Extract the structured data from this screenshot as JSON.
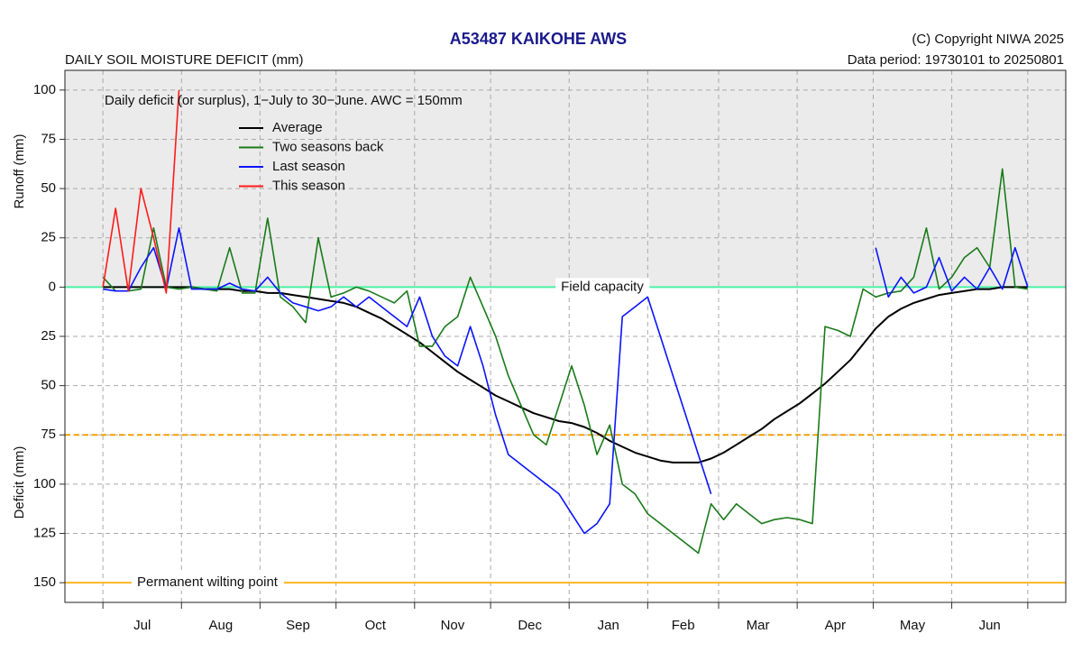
{
  "chart_data": {
    "type": "line",
    "title": "A53487  KAIKOHE AWS",
    "subtitle": "DAILY SOIL MOISTURE DEFICIT (mm)",
    "copyright": "(C) Copyright NIWA  2025",
    "data_period": "Data period:  19730101  to  20250801",
    "y_label_upper": "Runoff (mm)",
    "y_label_lower": "Deficit (mm)",
    "legend_title": "Daily deficit (or surplus), 1−July to 30−June.  AWC = 150mm",
    "categories": [
      "Jul",
      "Aug",
      "Sep",
      "Oct",
      "Nov",
      "Dec",
      "Jan",
      "Feb",
      "Mar",
      "Apr",
      "May",
      "Jun"
    ],
    "xticks": [
      0,
      31,
      62,
      92,
      123,
      153,
      184,
      215,
      243,
      274,
      304,
      335,
      365
    ],
    "xlim": [
      -15,
      380
    ],
    "ylim": [
      -160,
      110
    ],
    "yticks": [
      {
        "value": 100,
        "label": "100"
      },
      75,
      50,
      25,
      0,
      {
        "value": -25,
        "label": "25"
      },
      {
        "value": -50,
        "label": "50"
      },
      {
        "value": -75,
        "label": "75"
      },
      {
        "value": -100,
        "label": "100"
      },
      {
        "value": -125,
        "label": "125"
      },
      {
        "value": -150,
        "label": "150"
      }
    ],
    "grid": true,
    "surplus_shading": "#ebebeb",
    "reference_lines": [
      {
        "value": 0,
        "label": "Field capacity",
        "color": "#4cf0a4"
      },
      {
        "value": -75,
        "color": "#f5a000",
        "dashed": true
      },
      {
        "value": -150,
        "label": "Permanent wilting point",
        "color": "#ffb424"
      }
    ],
    "x": [
      0,
      5,
      10,
      15,
      20,
      25,
      30,
      35,
      40,
      45,
      50,
      55,
      60,
      65,
      70,
      75,
      80,
      85,
      90,
      95,
      100,
      105,
      110,
      115,
      120,
      125,
      130,
      135,
      140,
      145,
      150,
      155,
      160,
      165,
      170,
      175,
      180,
      185,
      190,
      195,
      200,
      205,
      210,
      215,
      220,
      225,
      230,
      235,
      240,
      245,
      250,
      255,
      260,
      265,
      270,
      275,
      280,
      285,
      290,
      295,
      300,
      305,
      310,
      315,
      320,
      325,
      330,
      335,
      340,
      345,
      350,
      355,
      360,
      365
    ],
    "series": [
      {
        "name": "Average",
        "color": "#000000",
        "values": [
          0,
          0,
          0,
          0,
          0,
          0,
          0,
          0,
          -1,
          -1,
          -1,
          -2,
          -2,
          -3,
          -3,
          -4,
          -5,
          -6,
          -7,
          -8,
          -10,
          -13,
          -16,
          -20,
          -24,
          -28,
          -33,
          -38,
          -43,
          -47,
          -51,
          -55,
          -58,
          -61,
          -64,
          -66,
          -68,
          -69,
          -71,
          -74,
          -78,
          -81,
          -84,
          -86,
          -88,
          -89,
          -89,
          -89,
          -87,
          -84,
          -80,
          -76,
          -72,
          -67,
          -63,
          -59,
          -54,
          -49,
          -43,
          -37,
          -29,
          -21,
          -15,
          -11,
          -8,
          -6,
          -4,
          -3,
          -2,
          -1,
          -1,
          0,
          0,
          0
        ]
      },
      {
        "name": "Two seasons back",
        "color": "#1a7a1a",
        "values": [
          5,
          -2,
          -2,
          -1,
          30,
          0,
          -1,
          0,
          -1,
          -2,
          20,
          -3,
          -3,
          35,
          -5,
          -10,
          -18,
          25,
          -5,
          -3,
          0,
          -2,
          -5,
          -8,
          -2,
          -30,
          -30,
          -20,
          -15,
          5,
          -10,
          -25,
          -45,
          -60,
          -75,
          -80,
          -60,
          -40,
          -60,
          -85,
          -70,
          -100,
          -105,
          -115,
          -120,
          -125,
          -130,
          -135,
          -110,
          -118,
          -110,
          -115,
          -120,
          -118,
          -117,
          -118,
          -120,
          -20,
          -22,
          -25,
          -1,
          -5,
          -3,
          -2,
          5,
          30,
          -1,
          5,
          15,
          20,
          10,
          60,
          0,
          -1
        ]
      },
      {
        "name": "Last season",
        "color": "#0a14ff",
        "values": [
          -1,
          -2,
          -2,
          10,
          20,
          -1,
          30,
          -1,
          -1,
          -1,
          2,
          -1,
          -2,
          5,
          -3,
          -8,
          -10,
          -12,
          -10,
          -5,
          -10,
          -5,
          -10,
          -15,
          -20,
          -5,
          -25,
          -35,
          -40,
          -20,
          -40,
          -65,
          -85,
          -90,
          -95,
          -100,
          -105,
          -115,
          -125,
          -120,
          -110,
          -15,
          -10,
          -5,
          -25,
          -45,
          -65,
          -85,
          -105,
          null,
          null,
          null,
          null,
          null,
          null,
          null,
          null,
          null,
          null,
          null,
          null,
          20,
          -5,
          5,
          -3,
          0,
          15,
          -2,
          5,
          -1,
          10,
          -1,
          20,
          0
        ]
      },
      {
        "name": "This season",
        "color": "#ff1a1a",
        "values": [
          0,
          40,
          -2,
          50,
          25,
          -3,
          100,
          null,
          null,
          null,
          null,
          null,
          null,
          null,
          null,
          null,
          null,
          null,
          null,
          null,
          null,
          null,
          null,
          null,
          null,
          null,
          null,
          null,
          null,
          null,
          null,
          null,
          null,
          null,
          null,
          null,
          null,
          null,
          null,
          null,
          null,
          null,
          null,
          null,
          null,
          null,
          null,
          null,
          null,
          null,
          null,
          null,
          null,
          null,
          null,
          null,
          null,
          null,
          null,
          null,
          null,
          null,
          null,
          null,
          null,
          null,
          null,
          null,
          null,
          null,
          null,
          null,
          null,
          null
        ]
      }
    ]
  }
}
